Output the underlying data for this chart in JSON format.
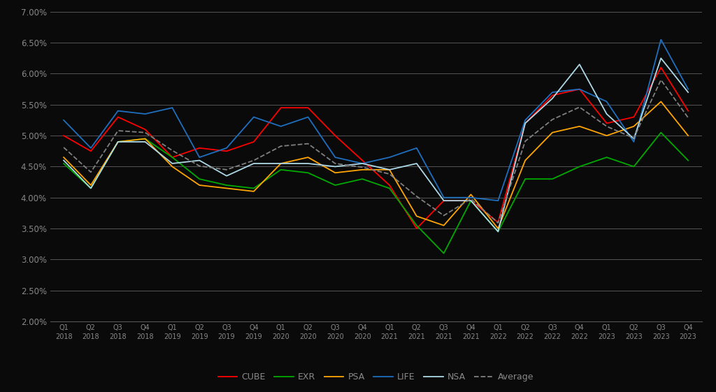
{
  "x_labels": [
    "Q1\n2018",
    "Q2\n2018",
    "Q3\n2018",
    "Q4\n2018",
    "Q1\n2019",
    "Q2\n2019",
    "Q3\n2019",
    "Q4\n2019",
    "Q1\n2020",
    "Q2\n2020",
    "Q3\n2020",
    "Q4\n2020",
    "Q1\n2021",
    "Q2\n2021",
    "Q3\n2021",
    "Q4\n2021",
    "Q1\n2022",
    "Q2\n2022",
    "Q3\n2023",
    "Q4\n2022",
    "Q1\n2023",
    "Q2\n2023",
    "Q3\n2023",
    "Q4\n2023"
  ],
  "x_labels_corrected": [
    "Q1\n2018",
    "Q2\n2018",
    "Q3\n2018",
    "Q4\n2018",
    "Q1\n2019",
    "Q2\n2019",
    "Q3\n2019",
    "Q4\n2019",
    "Q1\n2020",
    "Q2\n2020",
    "Q3\n2020",
    "Q4\n2020",
    "Q1\n2021",
    "Q2\n2021",
    "Q3\n2021",
    "Q4\n2021",
    "Q1\n2022",
    "Q2\n2022",
    "Q3\n2022",
    "Q4\n2022",
    "Q1\n2023",
    "Q2\n2023",
    "Q3\n2023",
    "Q4\n2023"
  ],
  "CUBE": [
    0.05,
    0.0475,
    0.053,
    0.051,
    0.0465,
    0.048,
    0.0475,
    0.049,
    0.0545,
    0.0545,
    0.05,
    0.046,
    0.042,
    0.035,
    0.0395,
    0.0395,
    0.036,
    0.052,
    0.0565,
    0.0575,
    0.052,
    0.053,
    0.061,
    0.054
  ],
  "EXR": [
    0.0455,
    0.0415,
    0.049,
    0.0495,
    0.0465,
    0.043,
    0.042,
    0.0415,
    0.0445,
    0.044,
    0.042,
    0.043,
    0.0415,
    0.0355,
    0.031,
    0.0395,
    0.0345,
    0.043,
    0.043,
    0.045,
    0.0465,
    0.045,
    0.0505,
    0.046
  ],
  "PSA": [
    0.0465,
    0.042,
    0.049,
    0.0495,
    0.045,
    0.042,
    0.0415,
    0.041,
    0.0455,
    0.0465,
    0.044,
    0.0445,
    0.0445,
    0.037,
    0.0355,
    0.0405,
    0.035,
    0.046,
    0.0505,
    0.0515,
    0.05,
    0.0515,
    0.0555,
    0.05
  ],
  "LIFE": [
    0.0525,
    0.048,
    0.054,
    0.0535,
    0.0545,
    0.0465,
    0.048,
    0.053,
    0.0515,
    0.053,
    0.0465,
    0.0455,
    0.0465,
    0.048,
    0.04,
    0.04,
    0.0395,
    0.0525,
    0.057,
    0.0575,
    0.0555,
    0.049,
    0.0655,
    0.0575
  ],
  "NSA": [
    0.046,
    0.0415,
    0.049,
    0.049,
    0.0455,
    0.046,
    0.0435,
    0.0455,
    0.0455,
    0.0455,
    0.045,
    0.0455,
    0.0445,
    0.0455,
    0.0395,
    0.0395,
    0.0345,
    0.052,
    0.056,
    0.0615,
    0.0535,
    0.0495,
    0.0625,
    0.057
  ],
  "Average": [
    0.0481,
    0.0441,
    0.0508,
    0.0505,
    0.0476,
    0.0451,
    0.0445,
    0.046,
    0.0483,
    0.0487,
    0.0455,
    0.0449,
    0.0438,
    0.0402,
    0.0371,
    0.0398,
    0.0359,
    0.0491,
    0.0526,
    0.0546,
    0.0515,
    0.0496,
    0.059,
    0.0529
  ],
  "colors": {
    "CUBE": "#FF0000",
    "EXR": "#00AA00",
    "PSA": "#FFA500",
    "LIFE": "#1F6FBF",
    "NSA": "#ADD8E6",
    "Average": "#808080"
  },
  "line_styles": {
    "CUBE": "solid",
    "EXR": "solid",
    "PSA": "solid",
    "LIFE": "solid",
    "NSA": "solid",
    "Average": "dashed"
  },
  "ylim": [
    0.02,
    0.07
  ],
  "yticks": [
    0.02,
    0.025,
    0.03,
    0.035,
    0.04,
    0.045,
    0.05,
    0.055,
    0.06,
    0.065,
    0.07
  ],
  "background_color": "#0a0a0a",
  "plot_bg_color": "#0a0a0a",
  "text_color": "#888888",
  "grid_color": "#555555",
  "legend_items": [
    "CUBE",
    "EXR",
    "PSA",
    "LIFE",
    "NSA",
    "Average"
  ]
}
